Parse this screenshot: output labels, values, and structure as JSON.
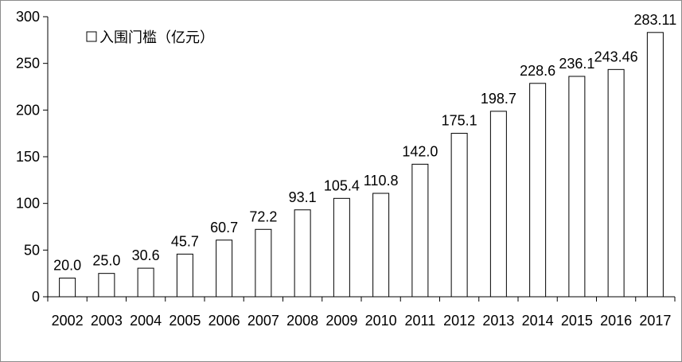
{
  "chart_data": {
    "type": "bar",
    "categories": [
      "2002",
      "2003",
      "2004",
      "2005",
      "2006",
      "2007",
      "2008",
      "2009",
      "2010",
      "2011",
      "2012",
      "2013",
      "2014",
      "2015",
      "2016",
      "2017"
    ],
    "series": [
      {
        "name": "入围门槛（亿元）",
        "values": [
          20.0,
          25.0,
          30.6,
          45.7,
          60.7,
          72.2,
          93.1,
          105.4,
          110.8,
          142.0,
          175.1,
          198.7,
          228.6,
          236.1,
          243.46,
          283.11
        ],
        "labels": [
          "20.0",
          "25.0",
          "30.6",
          "45.7",
          "60.7",
          "72.2",
          "93.1",
          "105.4",
          "110.8",
          "142.0",
          "175.1",
          "198.7",
          "228.6",
          "236.1",
          "243.46",
          "283.11"
        ]
      }
    ],
    "ylim": [
      0,
      300
    ],
    "yticks": [
      0,
      50,
      100,
      150,
      200,
      250,
      300
    ],
    "ytick_labels": [
      "0",
      "50",
      "100",
      "150",
      "200",
      "250",
      "300"
    ],
    "grid": false,
    "legend_position": "top-left",
    "colors": {
      "bar_fill": "#ffffff",
      "bar_stroke": "#000000",
      "axis": "#000000"
    }
  }
}
